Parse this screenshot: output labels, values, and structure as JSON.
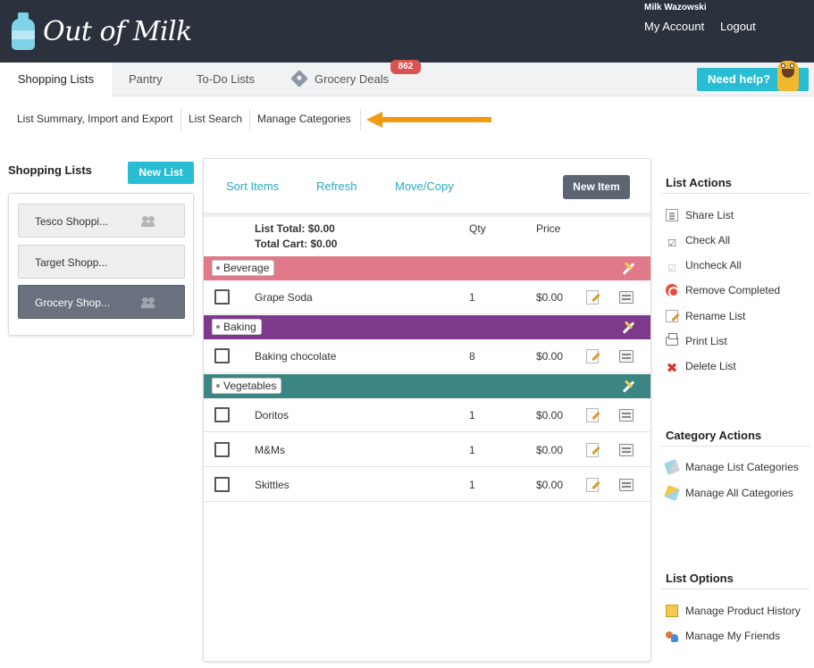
{
  "header": {
    "logo_text": "Out of Milk",
    "user_name": "Milk Wazowski",
    "my_account": "My Account",
    "logout": "Logout"
  },
  "tabs": {
    "shopping_lists": "Shopping Lists",
    "pantry": "Pantry",
    "todo_lists": "To-Do Lists",
    "grocery_deals": "Grocery Deals",
    "deals_badge": "862"
  },
  "help": {
    "label": "Need help?"
  },
  "subnav": {
    "summary": "List Summary, Import and Export",
    "search": "List Search",
    "categories": "Manage Categories"
  },
  "sidebar": {
    "title": "Shopping Lists",
    "new_list": "New List",
    "lists": [
      {
        "name": "Tesco Shoppi...",
        "shared": true,
        "active": false
      },
      {
        "name": "Target Shopp...",
        "shared": false,
        "active": false
      },
      {
        "name": "Grocery Shop...",
        "shared": true,
        "active": true
      }
    ]
  },
  "toolbar": {
    "sort_items": "Sort Items",
    "refresh": "Refresh",
    "move_copy": "Move/Copy",
    "new_item": "New Item"
  },
  "summary": {
    "list_total": "List Total: $0.00",
    "total_cart": "Total Cart: $0.00",
    "qty_header": "Qty",
    "price_header": "Price"
  },
  "categories": [
    {
      "name": "Beverage",
      "color": "#e07a8b",
      "items": [
        {
          "name": "Grape Soda",
          "qty": "1",
          "price": "$0.00"
        }
      ]
    },
    {
      "name": "Baking",
      "color": "#7d3a8c",
      "items": [
        {
          "name": "Baking chocolate",
          "qty": "8",
          "price": "$0.00"
        }
      ]
    },
    {
      "name": "Vegetables",
      "color": "#3b8582",
      "items": [
        {
          "name": "Doritos",
          "qty": "1",
          "price": "$0.00"
        },
        {
          "name": "M&Ms",
          "qty": "1",
          "price": "$0.00"
        },
        {
          "name": "Skittles",
          "qty": "1",
          "price": "$0.00"
        }
      ]
    }
  ],
  "list_actions": {
    "title": "List Actions",
    "share": "Share List",
    "check_all": "Check All",
    "uncheck_all": "Uncheck All",
    "remove_completed": "Remove Completed",
    "rename": "Rename List",
    "print": "Print List",
    "delete": "Delete List"
  },
  "category_actions": {
    "title": "Category Actions",
    "manage_list": "Manage List Categories",
    "manage_all": "Manage All Categories"
  },
  "list_options": {
    "title": "List Options",
    "product_history": "Manage Product History",
    "friends": "Manage My Friends"
  },
  "icons": {
    "share": "share-icon",
    "check": "check-icon",
    "uncheck": "uncheck-icon",
    "remove": "remove-icon",
    "rename": "rename-icon",
    "print": "print-icon",
    "delete": "delete-icon",
    "tag": "tag-icon",
    "edit": "edit-icon",
    "menu": "menu-icon"
  }
}
